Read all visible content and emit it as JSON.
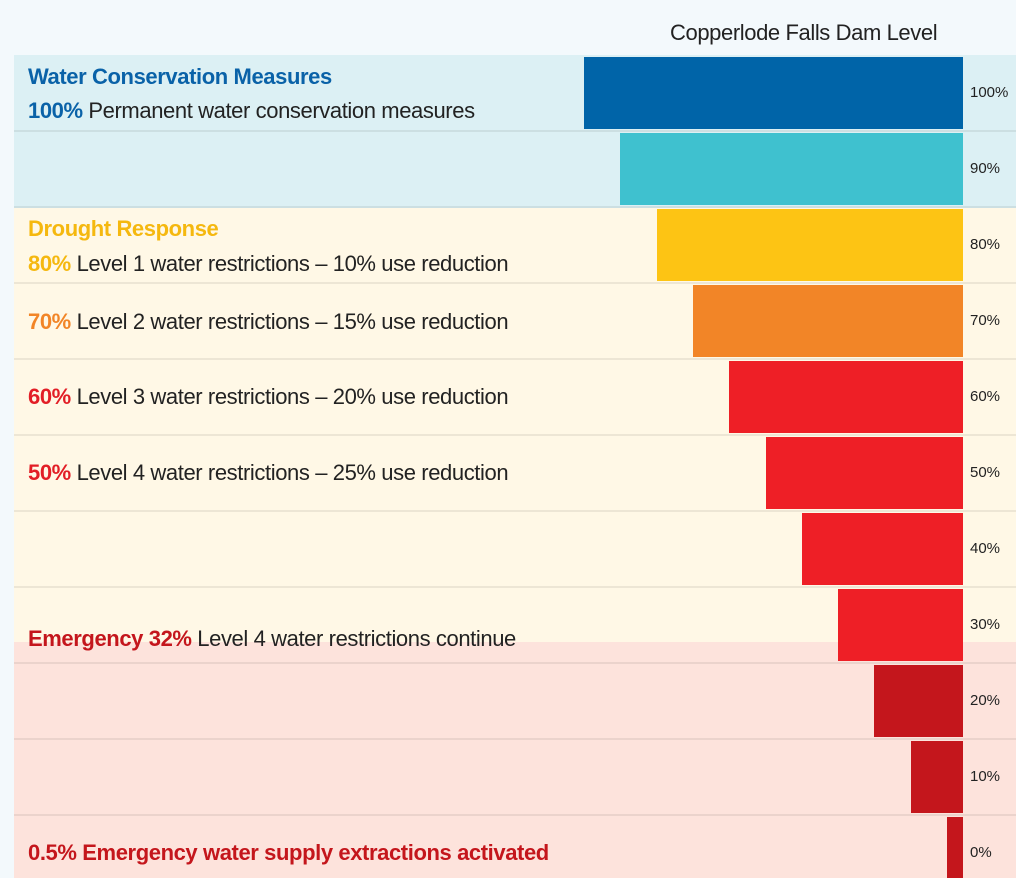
{
  "title": "Copperlode Falls Dam Level",
  "sections": [
    {
      "heading": "Water Conservation Measures",
      "color": "#0a62a8",
      "lines": [
        {
          "prefix": "100%",
          "text": "Permanent water conservation measures"
        }
      ]
    },
    {
      "heading": "Drought Response",
      "color": "#f5b80f",
      "lines": [
        {
          "prefix": "80%",
          "text": "Level 1 water restrictions – 10% use reduction",
          "color": "#f5b80f"
        },
        {
          "prefix": "70%",
          "text": "Level 2 water restrictions – 15% use reduction",
          "color": "#f28527"
        },
        {
          "prefix": "60%",
          "text": "Level 3 water restrictions – 20% use reduction",
          "color": "#e21e26"
        },
        {
          "prefix": "50%",
          "text": "Level 4 water restrictions – 25% use reduction",
          "color": "#e21e26"
        }
      ]
    },
    {
      "heading": "Emergency 32%",
      "color": "#c4161c",
      "text": "Level 4 water restrictions continue"
    },
    {
      "heading": "0.5% Emergency water supply extractions activated",
      "color": "#c4161c"
    }
  ],
  "levels": [
    {
      "value": 100,
      "label": "100%",
      "color": "#0064a8"
    },
    {
      "value": 90,
      "label": "90%",
      "color": "#3fc1cf"
    },
    {
      "value": 80,
      "label": "80%",
      "color": "#fdc414"
    },
    {
      "value": 70,
      "label": "70%",
      "color": "#f28527"
    },
    {
      "value": 60,
      "label": "60%",
      "color": "#ee1f26"
    },
    {
      "value": 50,
      "label": "50%",
      "color": "#ee1f26"
    },
    {
      "value": 40,
      "label": "40%",
      "color": "#ee1f26"
    },
    {
      "value": 30,
      "label": "30%",
      "color": "#ee1f26"
    },
    {
      "value": 20,
      "label": "20%",
      "color": "#c4161c"
    },
    {
      "value": 10,
      "label": "10%",
      "color": "#c4161c"
    },
    {
      "value": 0,
      "label": "0%",
      "color": "#c4161c"
    }
  ]
}
